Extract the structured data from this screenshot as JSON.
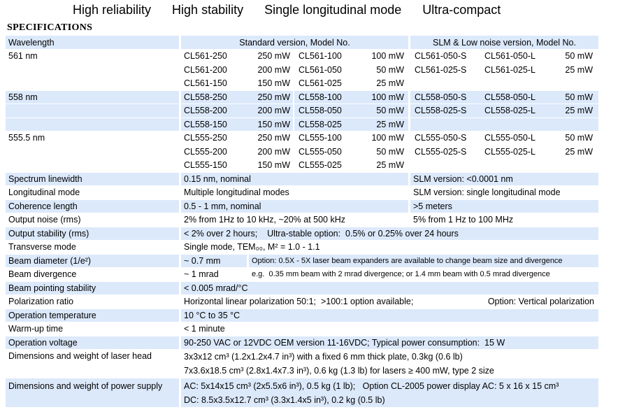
{
  "banner": {
    "phrases": [
      "High reliability",
      "High stability",
      "Single longitudinal mode",
      "Ultra-compact"
    ]
  },
  "section_title": "SPECIFICATIONS",
  "colors": {
    "row_highlight": "#dce9fb",
    "separator": "#ffffff",
    "text": "#000000"
  },
  "table": {
    "header": {
      "col1": "Wavelength",
      "col2": "Standard version, Model No.",
      "col3": "SLM & Low noise version, Model No."
    },
    "groups": [
      {
        "wavelength": "561 nm",
        "lines": [
          {
            "m1": "CL561-250",
            "p1": "250 mW",
            "m2": "CL561-100",
            "p2": "100 mW",
            "s1": "CL561-050-S",
            "s2": "CL561-050-L",
            "sp": "50 mW"
          },
          {
            "m1": "CL561-200",
            "p1": "200 mW",
            "m2": "CL561-050",
            "p2": "50 mW",
            "s1": "CL561-025-S",
            "s2": "CL561-025-L",
            "sp": "25 mW"
          },
          {
            "m1": "CL561-150",
            "p1": "150 mW",
            "m2": "CL561-025",
            "p2": "25 mW",
            "s1": "",
            "s2": "",
            "sp": ""
          }
        ]
      },
      {
        "wavelength": "558 nm",
        "lines": [
          {
            "m1": "CL558-250",
            "p1": "250 mW",
            "m2": "CL558-100",
            "p2": "100 mW",
            "s1": "CL558-050-S",
            "s2": "CL558-050-L",
            "sp": "50 mW"
          },
          {
            "m1": "CL558-200",
            "p1": "200 mW",
            "m2": "CL558-050",
            "p2": "50 mW",
            "s1": "CL558-025-S",
            "s2": "CL558-025-L",
            "sp": "25 mW"
          },
          {
            "m1": "CL558-150",
            "p1": "150 mW",
            "m2": "CL558-025",
            "p2": "25 mW",
            "s1": "",
            "s2": "",
            "sp": ""
          }
        ]
      },
      {
        "wavelength": "555.5 nm",
        "lines": [
          {
            "m1": "CL555-250",
            "p1": "250 mW",
            "m2": "CL555-100",
            "p2": "100 mW",
            "s1": "CL555-050-S",
            "s2": "CL555-050-L",
            "sp": "50 mW"
          },
          {
            "m1": "CL555-200",
            "p1": "200 mW",
            "m2": "CL555-050",
            "p2": "50 mW",
            "s1": "CL555-025-S",
            "s2": "CL555-025-L",
            "sp": "25 mW"
          },
          {
            "m1": "CL555-150",
            "p1": "150 mW",
            "m2": "CL555-025",
            "p2": "25 mW",
            "s1": "",
            "s2": "",
            "sp": ""
          }
        ]
      }
    ],
    "rows": {
      "spectrum": {
        "label": "Spectrum linewidth",
        "std": "0.15 nm, nominal",
        "slm": "SLM version: <0.0001 nm"
      },
      "longitudinal": {
        "label": "Longitudinal mode",
        "std": "Multiple longitudinal modes",
        "slm": "SLM version: single longitudinal mode"
      },
      "coherence": {
        "label": "Coherence length",
        "std": "0.5 - 1 mm, nominal",
        "slm": ">5 meters"
      },
      "noise": {
        "label": "Output noise (rms)",
        "std": "2% from 1Hz to 10 kHz, ~20% at 500 kHz",
        "slm": "5% from 1 Hz to 100 MHz"
      },
      "stability": {
        "label": "Output stability (rms)",
        "value": "< 2% over 2 hours;    Ultra-stable option:  0.5% or 0.25% over 24 hours"
      },
      "transverse": {
        "label": "Transverse mode",
        "value": "Single mode, TEM₀₀, M² = 1.0 - 1.1"
      },
      "beam_diameter": {
        "label": "Beam diameter (1/e²)",
        "value": "~ 0.7 mm",
        "note": "Option: 0.5X - 5X laser beam expanders are available to change beam size and divergence"
      },
      "beam_divergence": {
        "label": "Beam divergence",
        "value": "~ 1 mrad",
        "note": "e.g.  0.35 mm beam with 2 mrad divergence; or 1.4 mm beam with 0.5 mrad divergence"
      },
      "pointing": {
        "label": "Beam pointing stability",
        "value": "< 0.005 mrad/°C"
      },
      "polarization": {
        "label": "Polarization ratio",
        "main": "Horizontal linear polarization 50:1;  >100:1 option available;",
        "option": "Option: Vertical polarization"
      },
      "temperature": {
        "label": "Operation temperature",
        "value": "10 °C to 35 °C"
      },
      "warmup": {
        "label": "Warm-up time",
        "value": "< 1 minute"
      },
      "voltage": {
        "label": "Operation voltage",
        "value": "90-250 VAC or 12VDC OEM version 11-16VDC; Typical power consumption:  15 W"
      },
      "laser_head": {
        "label": "Dimensions and weight of laser head",
        "line1": "3x3x12 cm³ (1.2x1.2x4.7 in³) with a fixed 6 mm thick plate, 0.3kg (0.6 lb)",
        "line2": "7x3.6x18.5 cm³ (2.8x1.4x7.3 in³), 0.6 kg (1.3 lb) for lasers ≥ 400 mW, type 2 size"
      },
      "power_supply": {
        "label": "Dimensions and weight of power supply",
        "line1": "AC: 5x14x15 cm³ (2x5.5x6 in³), 0.5 kg (1 lb);   Option CL-2005 power display AC: 5 x 16 x 15 cm³",
        "line2": "DC: 8.5x3.5x12.7 cm³ (3.3x1.4x5 in³), 0.2 kg (0.5 lb)"
      }
    }
  }
}
